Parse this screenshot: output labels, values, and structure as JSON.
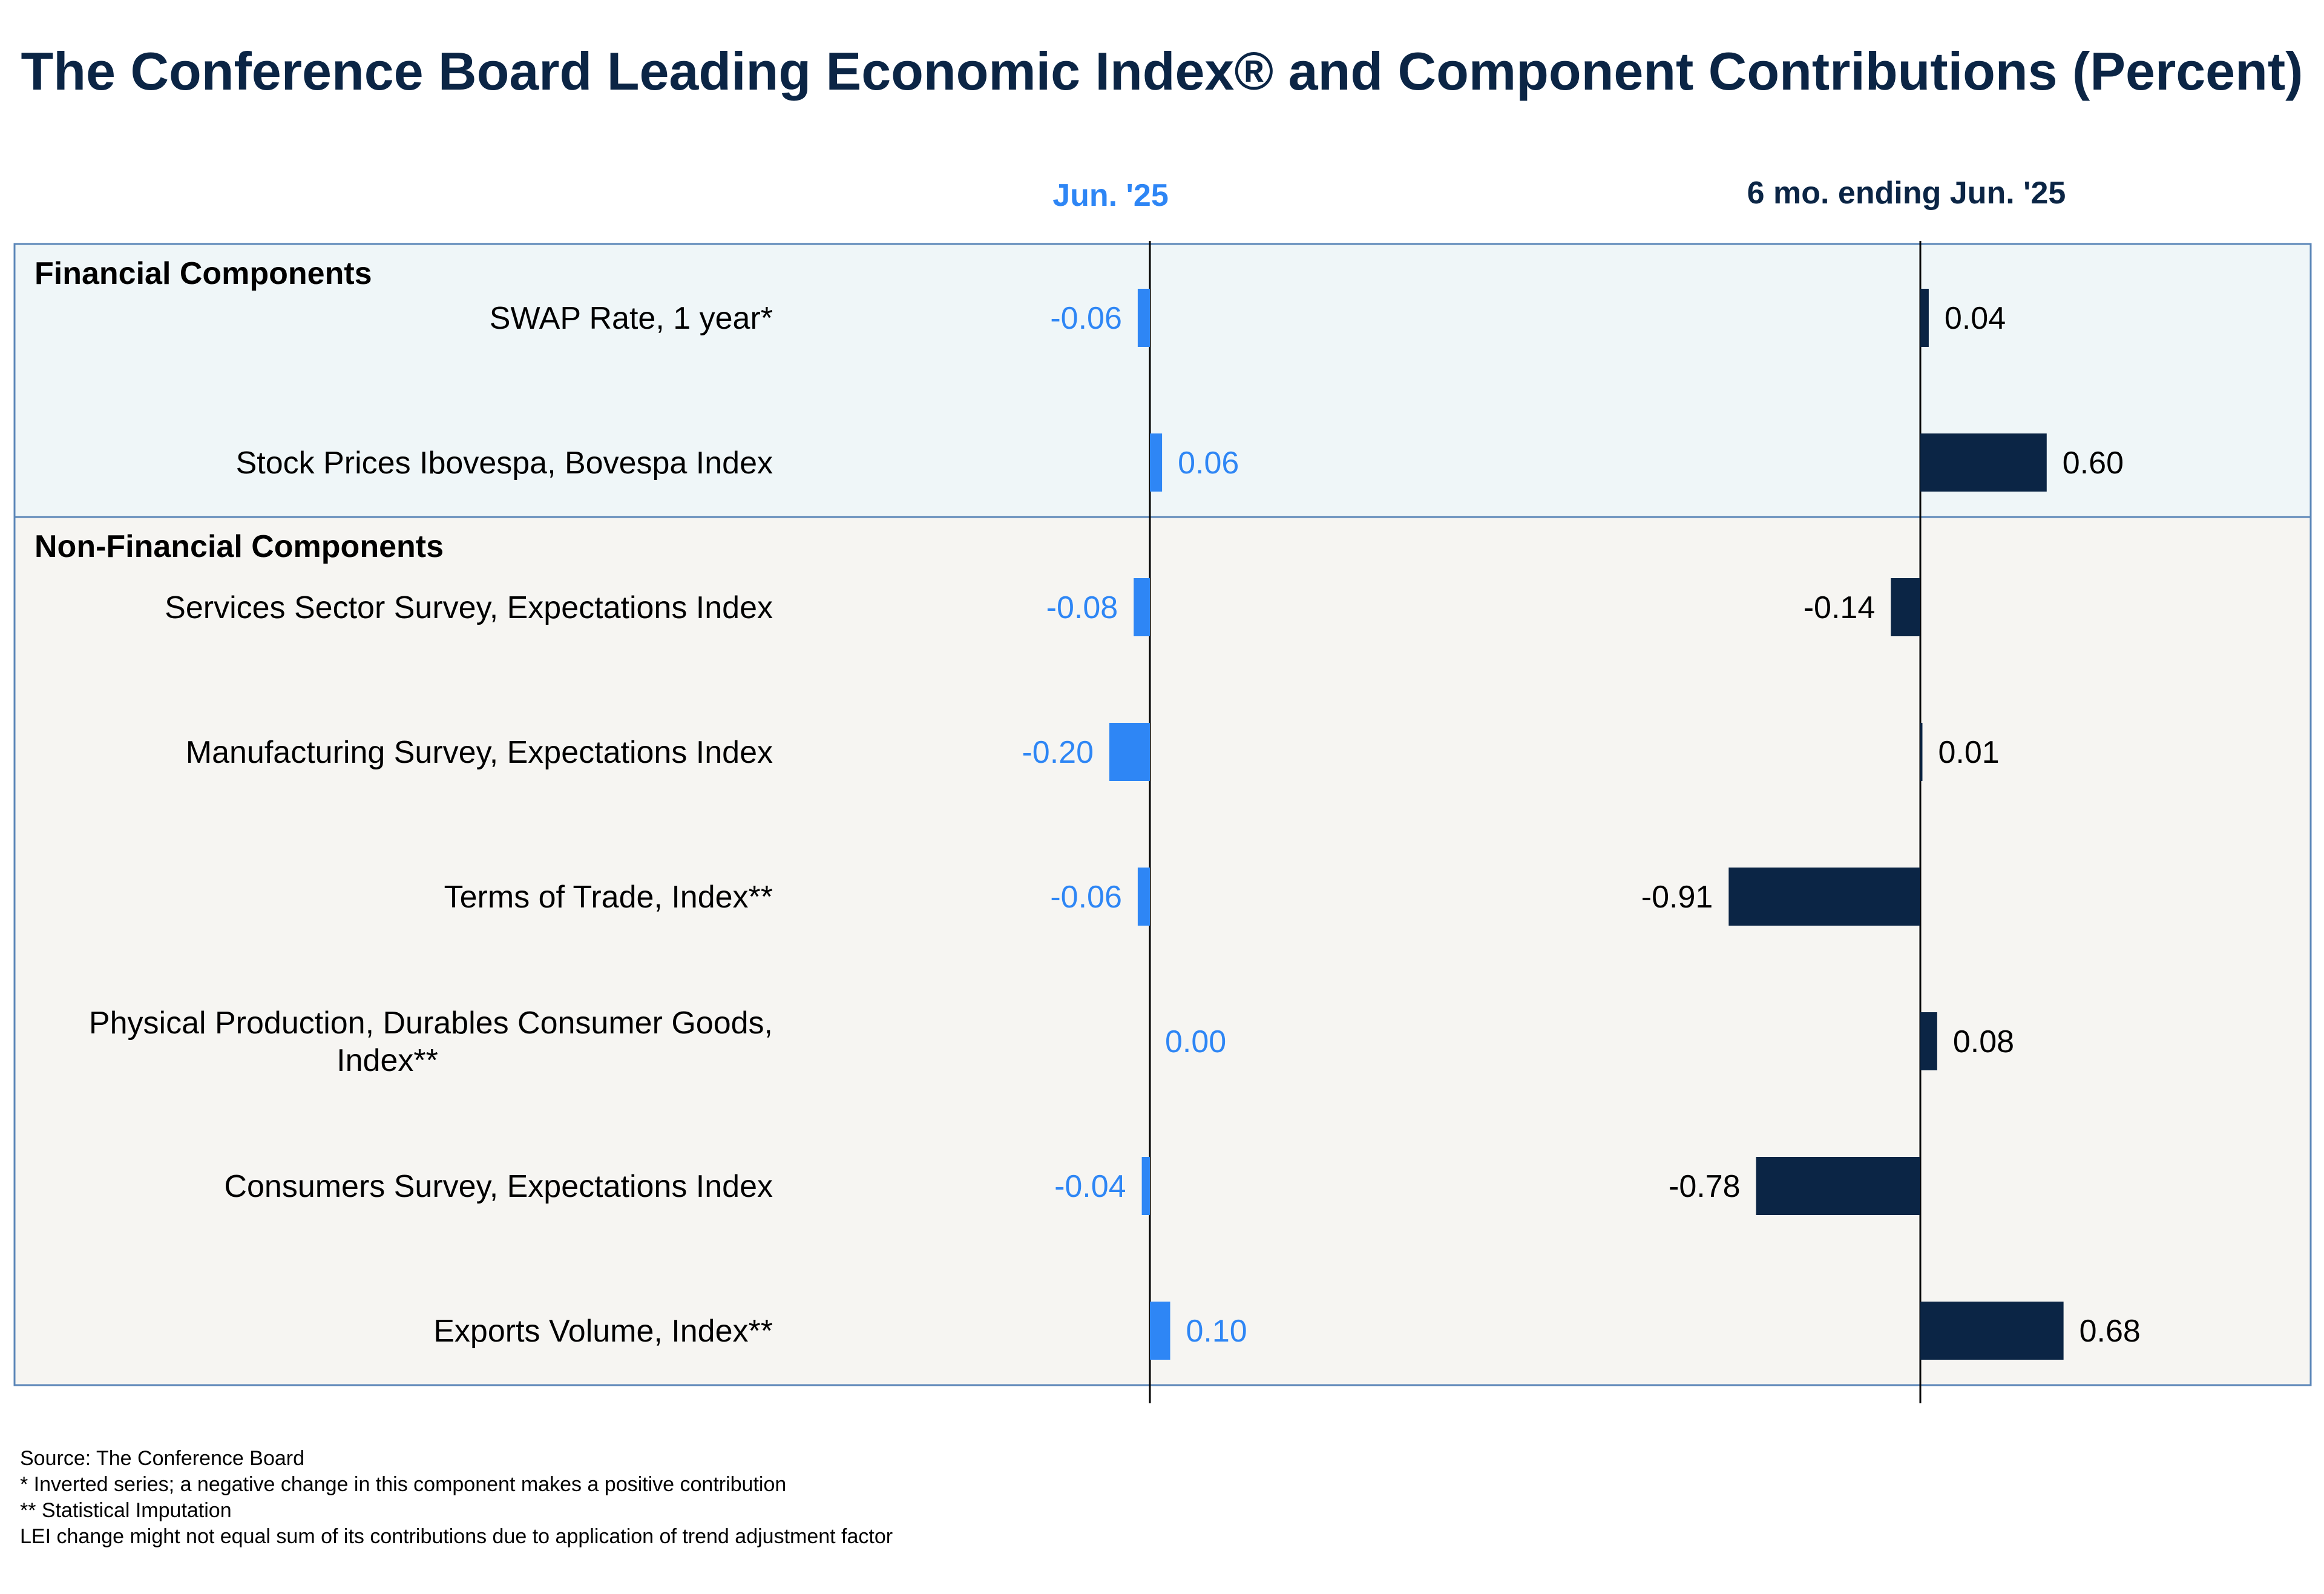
{
  "chart_data": {
    "type": "bar",
    "orientation": "horizontal",
    "title": "The Conference Board Leading Economic Index® and Component Contributions (Percent)",
    "columns": [
      {
        "key": "jun25",
        "header": "Jun. '25"
      },
      {
        "key": "six_mo",
        "header": "6 mo. ending Jun. '25"
      }
    ],
    "sections": [
      {
        "title": "Financial Components",
        "rows": [
          {
            "label": [
              "SWAP Rate, 1 year*"
            ],
            "jun25": -0.06,
            "six_mo": 0.04,
            "jun25_text": "-0.06",
            "six_mo_text": "0.04"
          },
          {
            "label": [
              "Stock Prices Ibovespa, Bovespa Index"
            ],
            "jun25": 0.06,
            "six_mo": 0.6,
            "jun25_text": "0.06",
            "six_mo_text": "0.60"
          }
        ]
      },
      {
        "title": "Non-Financial Components",
        "rows": [
          {
            "label": [
              "Services Sector Survey, Expectations Index"
            ],
            "jun25": -0.08,
            "six_mo": -0.14,
            "jun25_text": "-0.08",
            "six_mo_text": "-0.14"
          },
          {
            "label": [
              "Manufacturing Survey, Expectations Index"
            ],
            "jun25": -0.2,
            "six_mo": 0.01,
            "jun25_text": "-0.20",
            "six_mo_text": "0.01"
          },
          {
            "label": [
              "Terms of Trade, Index**"
            ],
            "jun25": -0.06,
            "six_mo": -0.91,
            "jun25_text": "-0.06",
            "six_mo_text": "-0.91"
          },
          {
            "label": [
              "Physical Production, Durables Consumer Goods,",
              "Index**"
            ],
            "jun25": 0.0,
            "six_mo": 0.08,
            "jun25_text": "0.00",
            "six_mo_text": "0.08"
          },
          {
            "label": [
              "Consumers Survey, Expectations Index"
            ],
            "jun25": -0.04,
            "six_mo": -0.78,
            "jun25_text": "-0.04",
            "six_mo_text": "-0.78"
          },
          {
            "label": [
              "Exports Volume, Index**"
            ],
            "jun25": 0.1,
            "six_mo": 0.68,
            "jun25_text": "0.10",
            "six_mo_text": "0.68"
          }
        ]
      }
    ],
    "footnotes": [
      "Source: The Conference Board",
      "*  Inverted series; a negative change in this component makes a positive contribution",
      "** Statistical Imputation",
      "LEI change might not equal sum of its contributions due to application of trend adjustment factor"
    ],
    "colors": {
      "jun25": "#2e86f5",
      "six_mo": "#0b2545",
      "title": "#0b2545",
      "financial_bg": "#eff6f8",
      "nonfinancial_bg": "#f6f5f2",
      "border": "#5b86b8"
    }
  }
}
